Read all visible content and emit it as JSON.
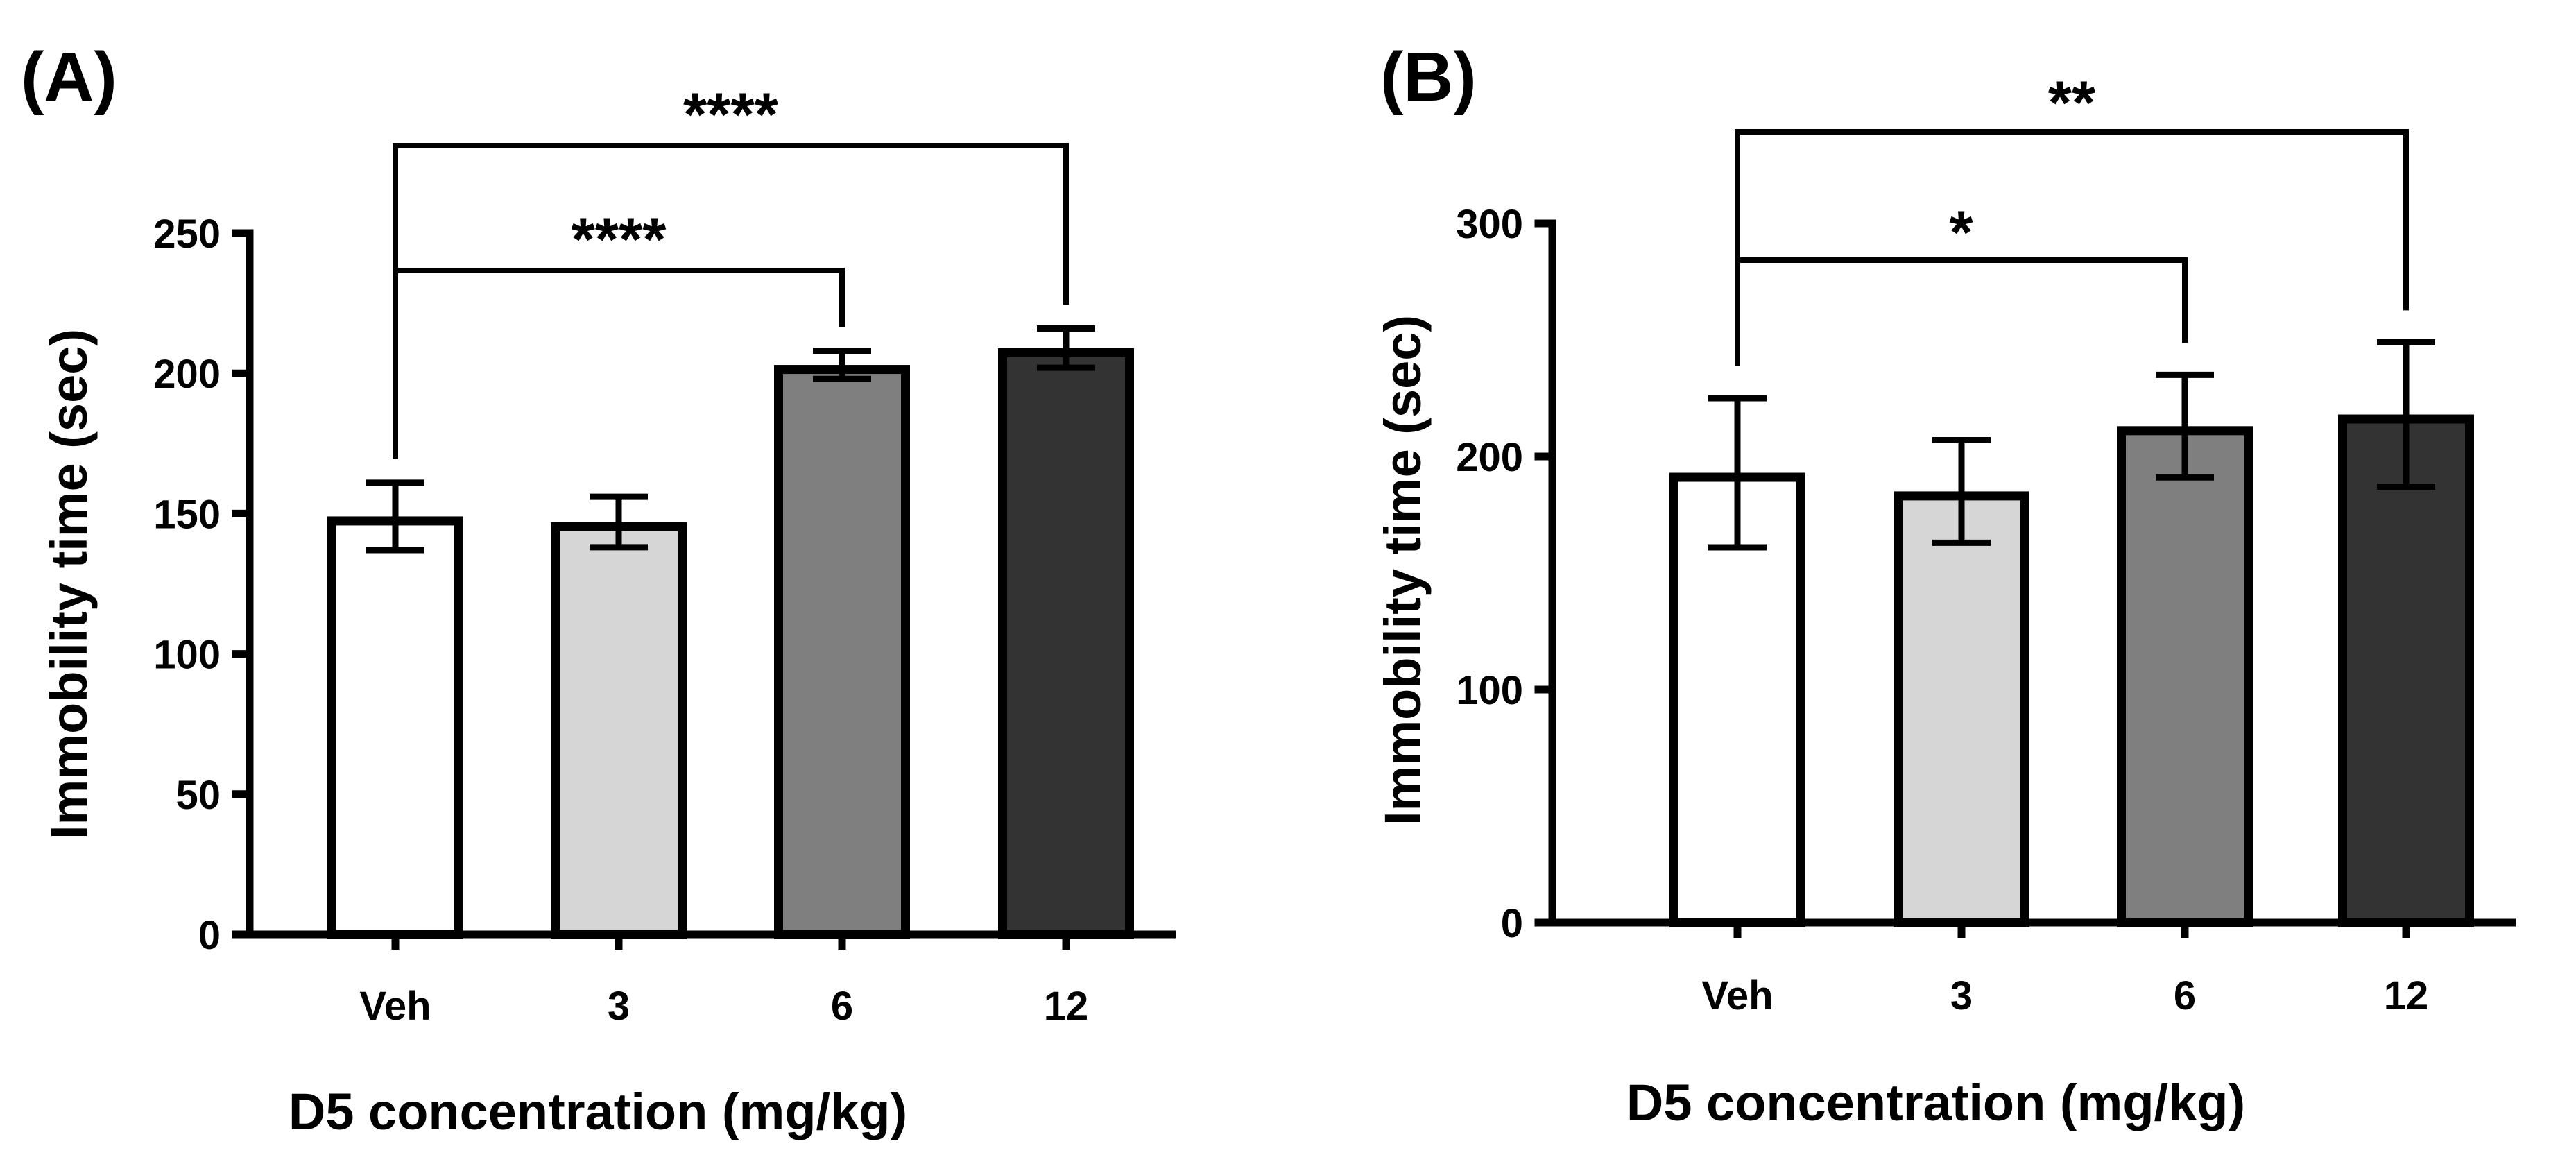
{
  "chart_data": [
    {
      "type": "bar",
      "panel_label": "(A)",
      "categories": [
        "Veh",
        "3",
        "6",
        "12"
      ],
      "values": [
        149,
        147,
        203,
        209
      ],
      "error": [
        12,
        9,
        5,
        7
      ],
      "bar_colors": [
        "#ffffff",
        "#d6d6d6",
        "#7f7f7f",
        "#333333"
      ],
      "xlabel": "D5 concentration (mg/kg)",
      "ylabel": "Immobility time (sec)",
      "ylim": [
        0,
        250
      ],
      "yticks": [
        0,
        50,
        100,
        150,
        200,
        250
      ],
      "significance": [
        {
          "from": "Veh",
          "to": "6",
          "label": "****"
        },
        {
          "from": "Veh",
          "to": "12",
          "label": "****"
        }
      ]
    },
    {
      "type": "bar",
      "panel_label": "(B)",
      "categories": [
        "Veh",
        "3",
        "6",
        "12"
      ],
      "values": [
        193,
        185,
        213,
        218
      ],
      "error": [
        32,
        22,
        22,
        31
      ],
      "bar_colors": [
        "#ffffff",
        "#d6d6d6",
        "#7f7f7f",
        "#333333"
      ],
      "xlabel": "D5 concentration (mg/kg)",
      "ylabel": "Immobility time (sec)",
      "ylim": [
        0,
        300
      ],
      "yticks": [
        0,
        100,
        200,
        300
      ],
      "significance": [
        {
          "from": "Veh",
          "to": "6",
          "label": "*"
        },
        {
          "from": "Veh",
          "to": "12",
          "label": "**"
        }
      ]
    }
  ]
}
